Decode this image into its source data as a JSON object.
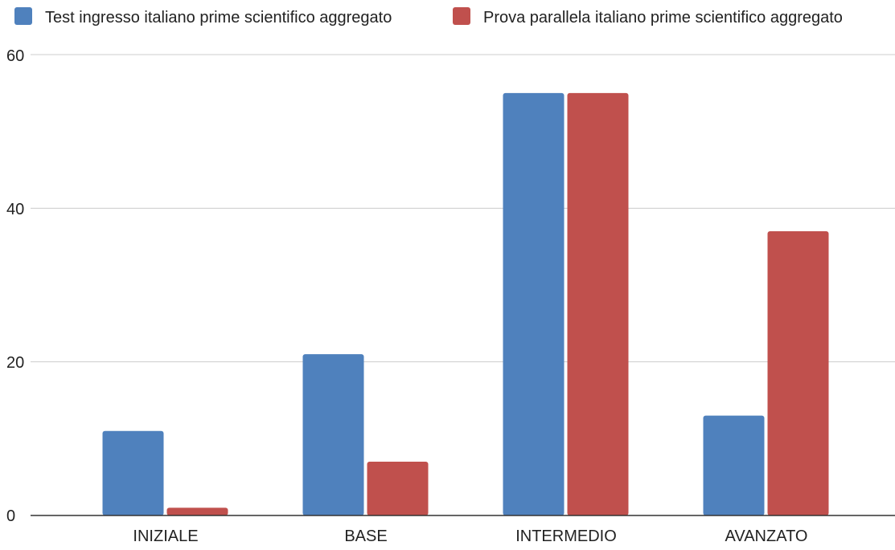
{
  "chart_data": {
    "type": "bar",
    "categories": [
      "INIZIALE",
      "BASE",
      "INTERMEDIO",
      "AVANZATO"
    ],
    "series": [
      {
        "name": "Test ingresso italiano prime scientifico aggregato",
        "values": [
          11,
          21,
          55,
          13
        ],
        "color": "#4F81BD"
      },
      {
        "name": "Prova parallela italiano prime scientifico aggregato",
        "values": [
          1,
          7,
          55,
          37
        ],
        "color": "#C0504D"
      }
    ],
    "yticks": [
      "0",
      "20",
      "40",
      "60"
    ],
    "ylim": [
      0,
      60
    ],
    "grid": true,
    "legend_position": "top"
  }
}
